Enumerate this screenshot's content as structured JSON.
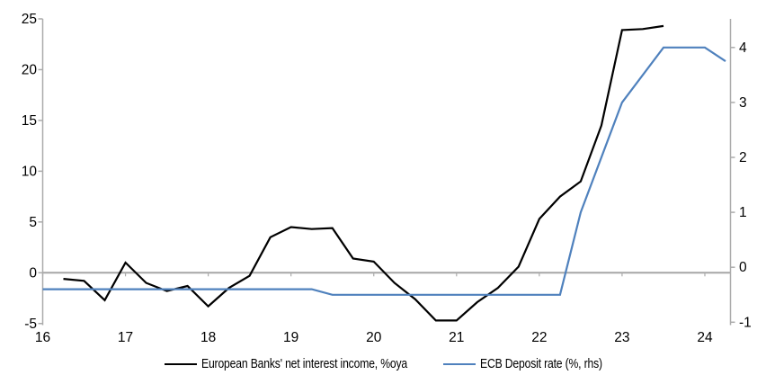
{
  "chart_data": {
    "type": "line",
    "title": "",
    "legend_position": "bottom",
    "grid": "zero-line-only",
    "series": [
      {
        "name": "European Banks' net interest income, %oya",
        "axis": "left",
        "color": "#000000",
        "x": [
          16.25,
          16.5,
          16.75,
          17.0,
          17.25,
          17.5,
          17.75,
          18.0,
          18.25,
          18.5,
          18.75,
          19.0,
          19.25,
          19.5,
          19.75,
          20.0,
          20.25,
          20.5,
          20.75,
          21.0,
          21.25,
          21.5,
          21.75,
          22.0,
          22.25,
          22.5,
          22.75,
          23.0,
          23.25,
          23.5
        ],
        "values": [
          -0.6,
          -0.8,
          -2.7,
          1.0,
          -1.0,
          -1.8,
          -1.3,
          -3.3,
          -1.5,
          -0.3,
          3.5,
          4.5,
          4.3,
          4.4,
          1.4,
          1.1,
          -1.0,
          -2.6,
          -4.7,
          -4.7,
          -2.9,
          -1.5,
          0.6,
          5.3,
          7.5,
          9.0,
          14.5,
          23.9,
          24.0,
          24.3
        ]
      },
      {
        "name": "ECB Deposit rate (%, rhs)",
        "axis": "right",
        "color": "#4F81BD",
        "x": [
          16.0,
          19.25,
          19.5,
          22.25,
          22.5,
          23.0,
          23.5,
          24.0,
          24.25
        ],
        "values": [
          -0.4,
          -0.4,
          -0.5,
          -0.5,
          1.0,
          3.0,
          4.0,
          4.0,
          3.75
        ]
      }
    ],
    "left_axis": {
      "ticks": [
        25,
        20,
        15,
        10,
        5,
        0,
        -5
      ],
      "range": [
        -5,
        25
      ]
    },
    "right_axis": {
      "ticks": [
        4,
        3,
        2,
        1,
        0,
        -1
      ],
      "range": [
        -1,
        4.5
      ]
    },
    "x_axis": {
      "ticks": [
        16,
        17,
        18,
        19,
        20,
        21,
        22,
        23,
        24
      ],
      "range": [
        16,
        24.31
      ]
    },
    "colors": {
      "axis_line": "#ababab",
      "zero_line": "#a6a6a6",
      "tick": "#ababab"
    }
  }
}
